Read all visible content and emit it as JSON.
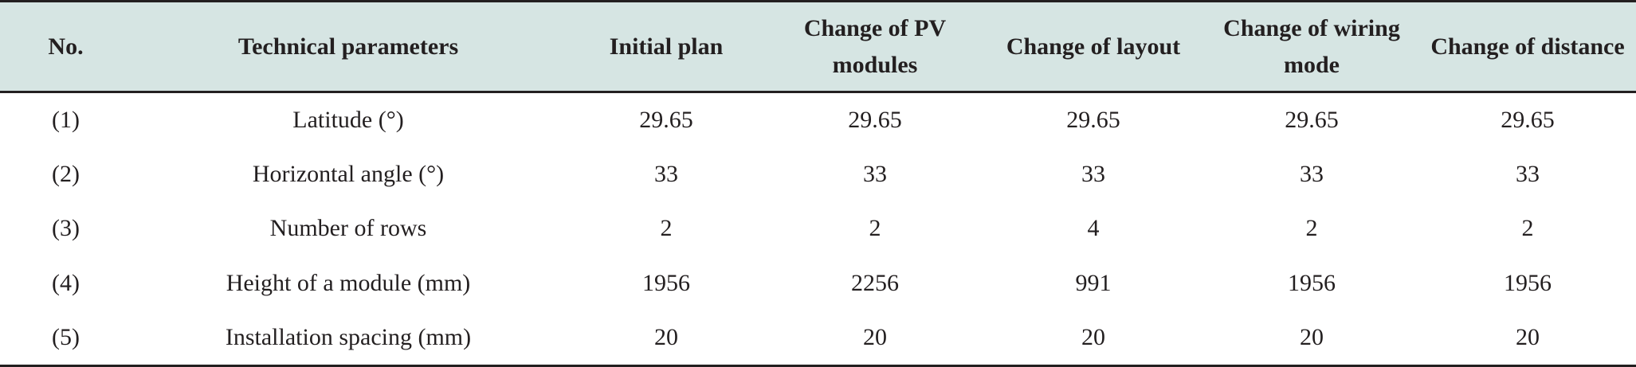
{
  "table": {
    "headers": [
      "No.",
      "Technical parameters",
      "Initial plan",
      "Change of PV modules",
      "Change of layout",
      "Change of wiring mode",
      "Change of distance"
    ],
    "rows": [
      [
        "(1)",
        "Latitude (°)",
        "29.65",
        "29.65",
        "29.65",
        "29.65",
        "29.65"
      ],
      [
        "(2)",
        "Horizontal angle (°)",
        "33",
        "33",
        "33",
        "33",
        "33"
      ],
      [
        "(3)",
        "Number of rows",
        "2",
        "2",
        "4",
        "2",
        "2"
      ],
      [
        "(4)",
        "Height of a module (mm)",
        "1956",
        "2256",
        "991",
        "1956",
        "1956"
      ],
      [
        "(5)",
        "Installation spacing (mm)",
        "20",
        "20",
        "20",
        "20",
        "20"
      ]
    ]
  }
}
